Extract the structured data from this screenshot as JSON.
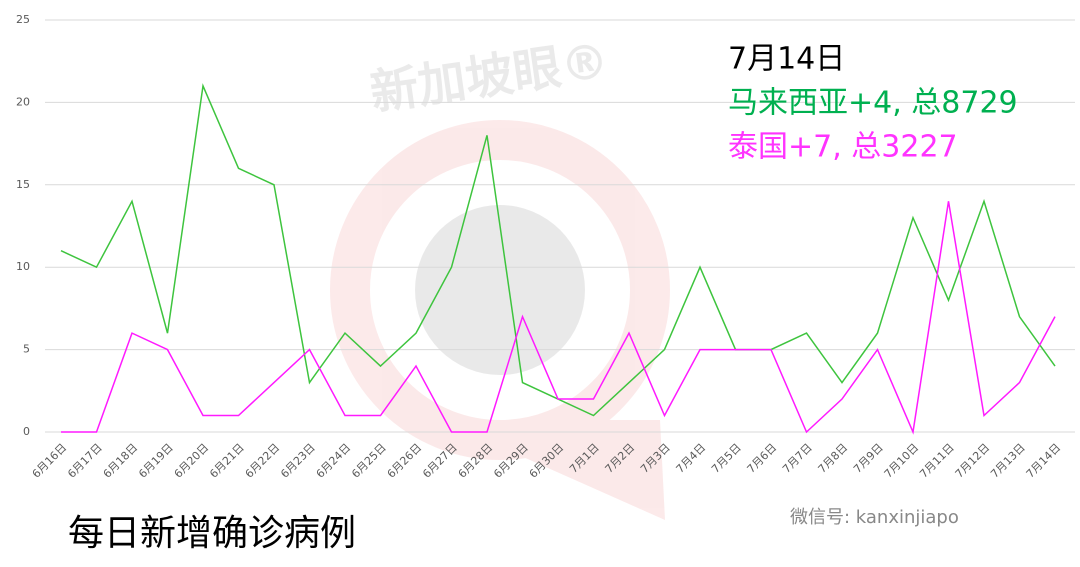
{
  "chart_data": {
    "type": "line",
    "title": "每日新增确诊病例",
    "annotations": [
      "7月14日",
      "马来西亚+4, 总8729",
      "泰国+7, 总3227"
    ],
    "annotation_colors": [
      "#000000",
      "#00b050",
      "#ff33ff"
    ],
    "watermark": [
      "新加坡眼®",
      "微信号: kanxinjiapo"
    ],
    "categories": [
      "6月16日",
      "6月17日",
      "6月18日",
      "6月19日",
      "6月20日",
      "6月21日",
      "6月22日",
      "6月23日",
      "6月24日",
      "6月25日",
      "6月26日",
      "6月27日",
      "6月28日",
      "6月29日",
      "6月30日",
      "7月1日",
      "7月2日",
      "7月3日",
      "7月4日",
      "7月5日",
      "7月6日",
      "7月7日",
      "7月8日",
      "7月9日",
      "7月10日",
      "7月11日",
      "7月12日",
      "7月13日",
      "7月14日"
    ],
    "series": [
      {
        "color": "#3ec43e",
        "values": [
          11,
          10,
          14,
          6,
          21,
          16,
          15,
          3,
          6,
          4,
          6,
          10,
          18,
          3,
          2,
          1,
          3,
          5,
          10,
          5,
          5,
          6,
          3,
          6,
          13,
          8,
          14,
          7,
          4
        ]
      },
      {
        "color": "#ff1aff",
        "values": [
          0,
          0,
          6,
          5,
          1,
          1,
          3,
          5,
          1,
          1,
          4,
          0,
          0,
          7,
          2,
          2,
          6,
          1,
          5,
          5,
          5,
          0,
          2,
          5,
          0,
          14,
          1,
          3,
          7
        ]
      }
    ],
    "ylim": [
      0,
      25
    ],
    "yticks": [
      0,
      5,
      10,
      15,
      20,
      25
    ],
    "grid": true
  }
}
